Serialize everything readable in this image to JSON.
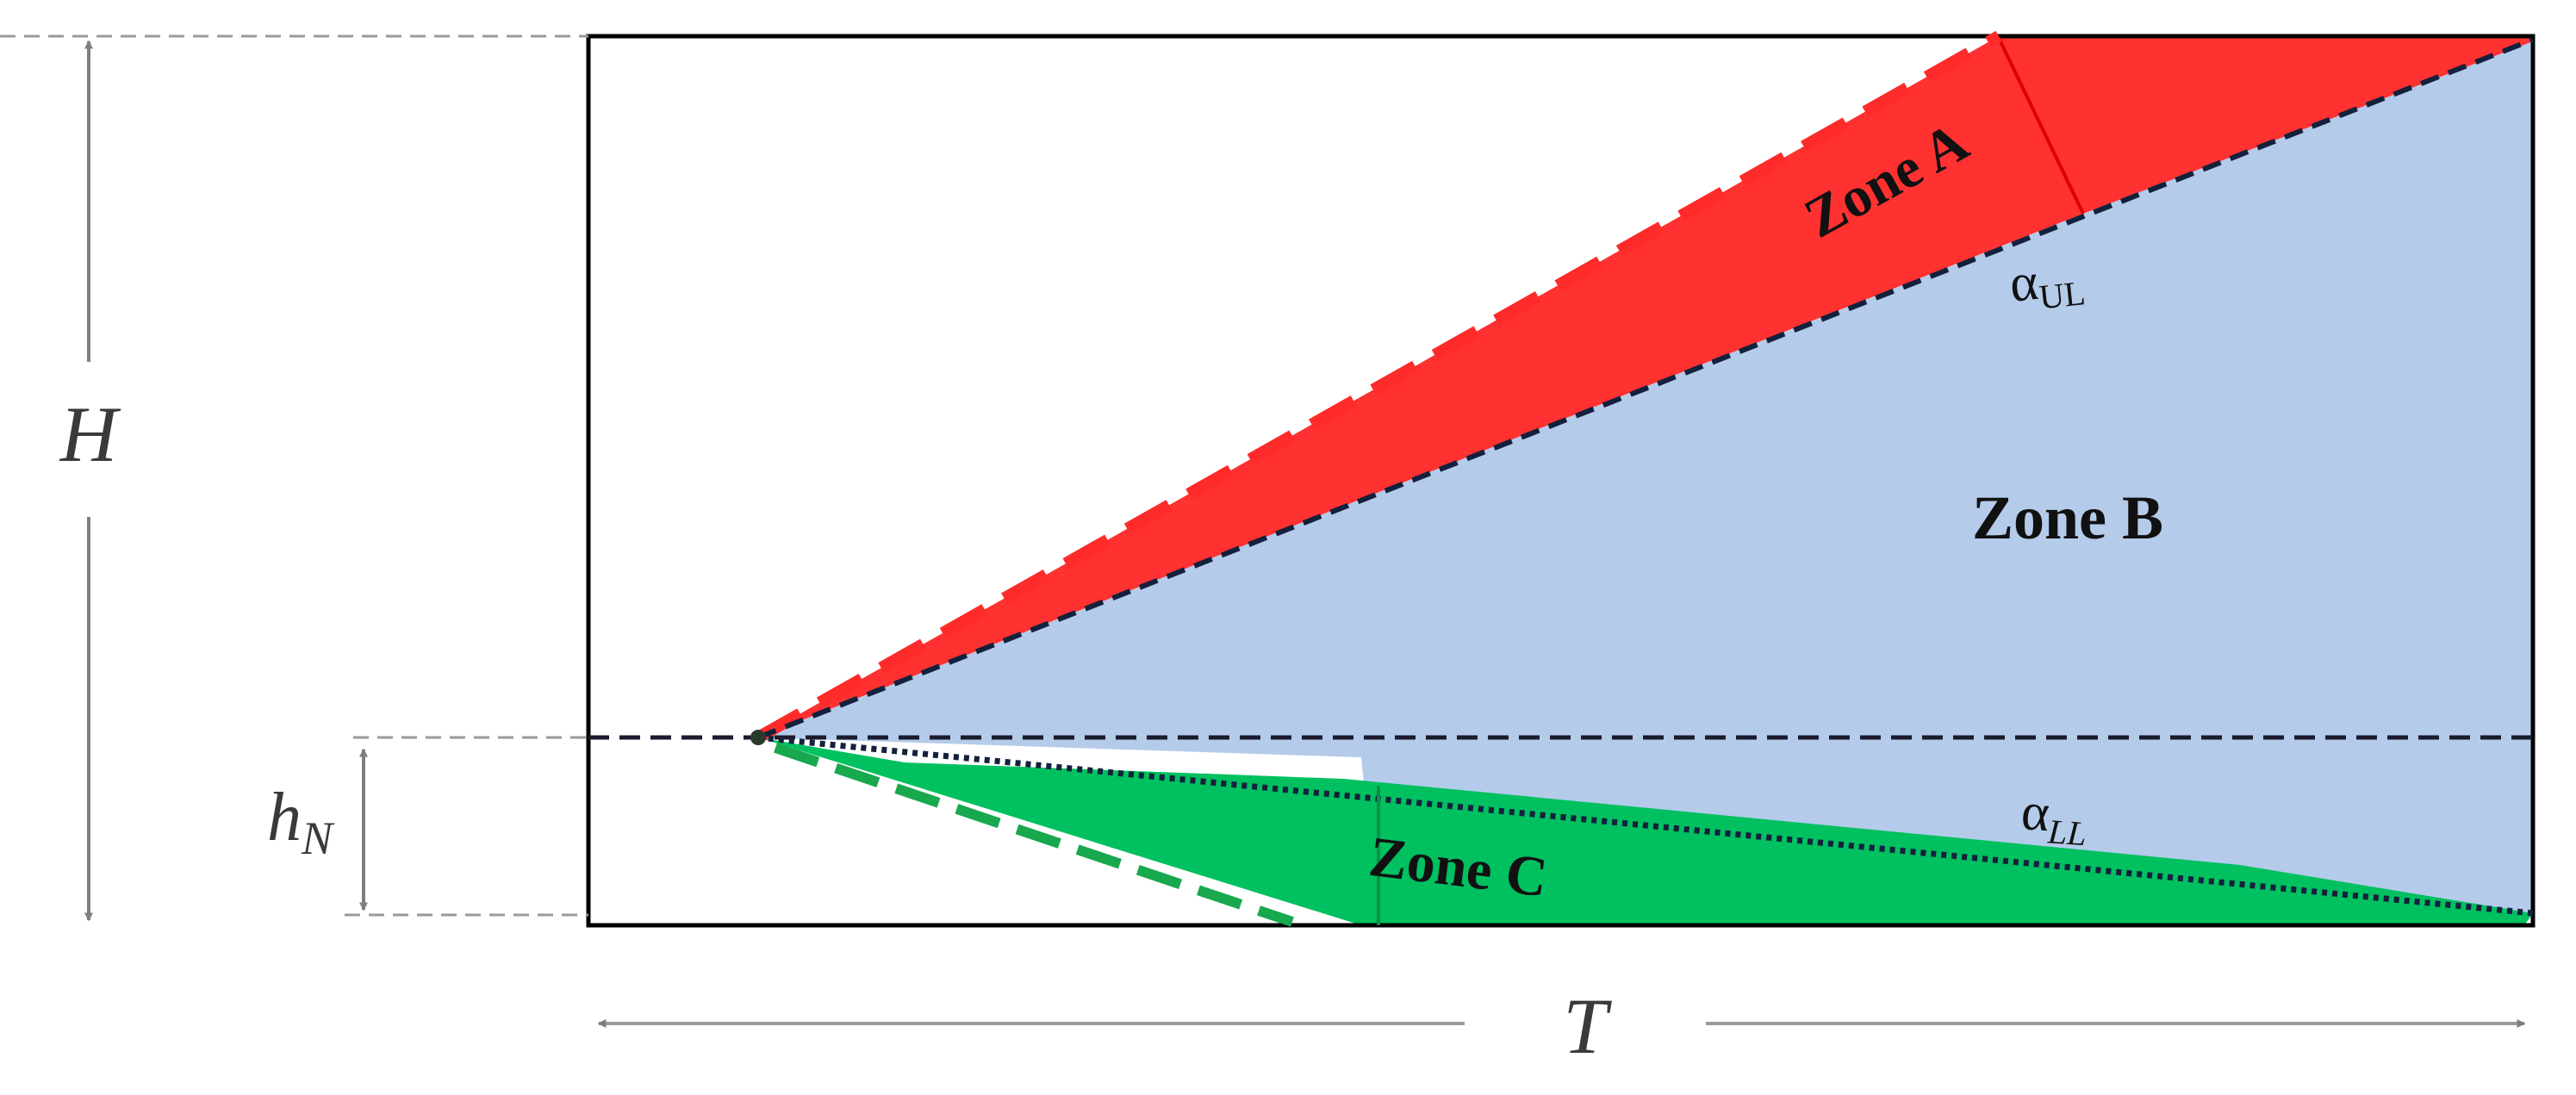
{
  "diagram": {
    "labels": {
      "zone_a": "Zone A",
      "zone_b": "Zone B",
      "zone_c": "Zone C",
      "alpha_upper_symbol": "α",
      "alpha_upper_sub": "UL",
      "alpha_lower_symbol": "α",
      "alpha_lower_sub": "LL",
      "height": "H",
      "nozzle_height_main": "h",
      "nozzle_height_sub": "N",
      "length": "T"
    },
    "colors": {
      "zone_a": "#ff3131",
      "zone_b": "#b4cbea",
      "zone_c": "#00c060",
      "zone_a_dash": "#ff2a2a",
      "zone_c_dash": "#18a84e",
      "boundary_dash": "#14213d",
      "frame": "#000000",
      "dimension": "#7f7f7f"
    }
  }
}
